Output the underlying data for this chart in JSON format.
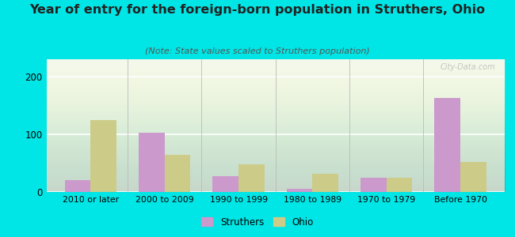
{
  "categories": [
    "2010 or later",
    "2000 to 2009",
    "1990 to 1999",
    "1980 to 1989",
    "1970 to 1979",
    "Before 1970"
  ],
  "struthers_values": [
    20,
    102,
    28,
    5,
    25,
    163
  ],
  "ohio_values": [
    125,
    65,
    48,
    32,
    25,
    52
  ],
  "struthers_color": "#cc99cc",
  "ohio_color": "#cccc88",
  "title": "Year of entry for the foreign-born population in Struthers, Ohio",
  "subtitle": "(Note: State values scaled to Struthers population)",
  "title_fontsize": 11.5,
  "subtitle_fontsize": 8,
  "ylabel_ticks": [
    0,
    100,
    200
  ],
  "ylim": [
    0,
    230
  ],
  "background_outer": "#00e5e5",
  "watermark": "City-Data.com",
  "legend_struthers": "Struthers",
  "legend_ohio": "Ohio",
  "bar_width": 0.35
}
